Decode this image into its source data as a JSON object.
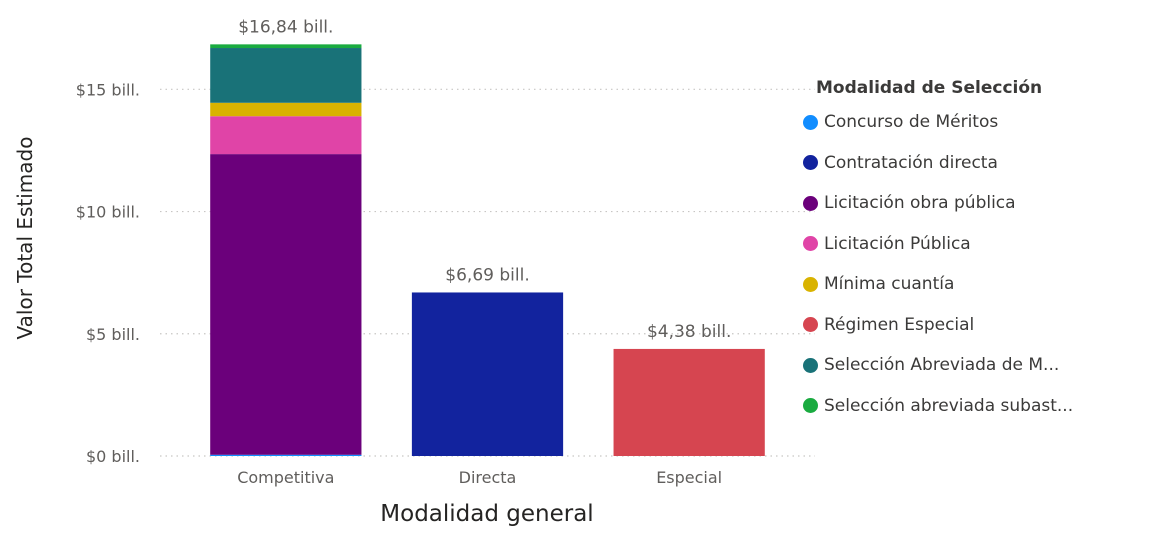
{
  "chart_data": {
    "type": "bar",
    "stacked": true,
    "categories": [
      "Competitiva",
      "Directa",
      "Especial"
    ],
    "series": [
      {
        "name": "Concurso de Méritos",
        "color": "#118DFF",
        "values": [
          0.05,
          0,
          0
        ]
      },
      {
        "name": "Contratación directa",
        "color": "#12239E",
        "values": [
          0,
          6.69,
          0
        ]
      },
      {
        "name": "Licitación obra pública",
        "color": "#6B007B",
        "values": [
          12.3,
          0,
          0
        ]
      },
      {
        "name": "Licitación Pública",
        "color": "#E044A7",
        "values": [
          1.55,
          0,
          0
        ]
      },
      {
        "name": "Mínima cuantía",
        "color": "#D9B300",
        "values": [
          0.55,
          0,
          0
        ]
      },
      {
        "name": "Régimen Especial",
        "color": "#D64550",
        "values": [
          0,
          0,
          4.38
        ]
      },
      {
        "name": "Selección Abreviada de M...",
        "color": "#197278",
        "values": [
          2.24,
          0,
          0
        ]
      },
      {
        "name": "Selección abreviada subast...",
        "color": "#1AAB40",
        "values": [
          0.15,
          0,
          0
        ]
      }
    ],
    "totals": [
      16.84,
      6.69,
      4.38
    ],
    "total_labels": [
      "$16,84 bill.",
      "$6,69 bill.",
      "$4,38 bill."
    ],
    "yticks": [
      0,
      5,
      10,
      15
    ],
    "ytick_labels": [
      "$0 bill.",
      "$5 bill.",
      "$10 bill.",
      "$15 bill."
    ],
    "ylim": [
      0,
      17.1
    ],
    "xlabel": "Modalidad general",
    "ylabel": "Valor Total Estimado",
    "legend_title": "Modalidad de Selección",
    "legend_position": "right",
    "grid": true
  }
}
